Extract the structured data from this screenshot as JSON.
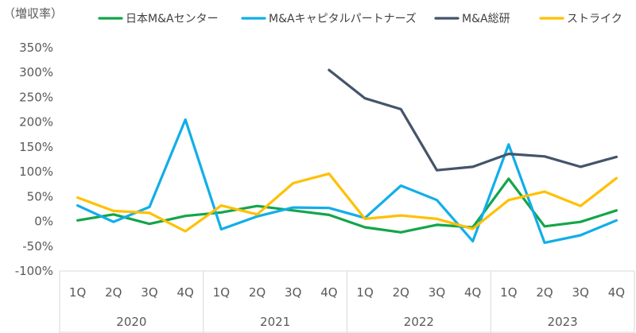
{
  "chart_data": {
    "type": "line",
    "ylabel": "（増収率）",
    "ylim": [
      -100,
      350
    ],
    "yticks": [
      -100,
      -50,
      0,
      50,
      100,
      150,
      200,
      250,
      300,
      350
    ],
    "ytick_labels": [
      "-100%",
      "-50%",
      "0%",
      "50%",
      "100%",
      "150%",
      "200%",
      "250%",
      "300%",
      "350%"
    ],
    "grid": false,
    "legend_position": "top",
    "categories": [
      "1Q",
      "2Q",
      "3Q",
      "4Q",
      "1Q",
      "2Q",
      "3Q",
      "4Q",
      "1Q",
      "2Q",
      "3Q",
      "4Q",
      "1Q",
      "2Q",
      "3Q",
      "4Q"
    ],
    "groups": [
      {
        "label": "2020",
        "start": 0,
        "end": 3
      },
      {
        "label": "2021",
        "start": 4,
        "end": 7
      },
      {
        "label": "2022",
        "start": 8,
        "end": 11
      },
      {
        "label": "2023",
        "start": 12,
        "end": 15
      }
    ],
    "series": [
      {
        "name": "日本M&Aセンター",
        "color": "#13a54a",
        "values": [
          2,
          14,
          -5,
          11,
          18,
          31,
          22,
          13,
          -12,
          -22,
          -7,
          -12,
          86,
          -10,
          -1,
          22
        ]
      },
      {
        "name": "M&Aキャピタルパートナーズ",
        "color": "#11aee8",
        "values": [
          32,
          -1,
          29,
          205,
          -16,
          10,
          28,
          27,
          7,
          72,
          43,
          -40,
          155,
          -43,
          -28,
          2
        ]
      },
      {
        "name": "M&A総研",
        "color": "#44546a",
        "values": [
          null,
          null,
          null,
          null,
          null,
          null,
          null,
          305,
          248,
          226,
          103,
          110,
          136,
          131,
          110,
          130
        ]
      },
      {
        "name": "ストライク",
        "color": "#ffc000",
        "values": [
          48,
          21,
          17,
          -20,
          32,
          14,
          77,
          96,
          5,
          12,
          5,
          -15,
          43,
          60,
          31,
          87
        ]
      }
    ]
  }
}
